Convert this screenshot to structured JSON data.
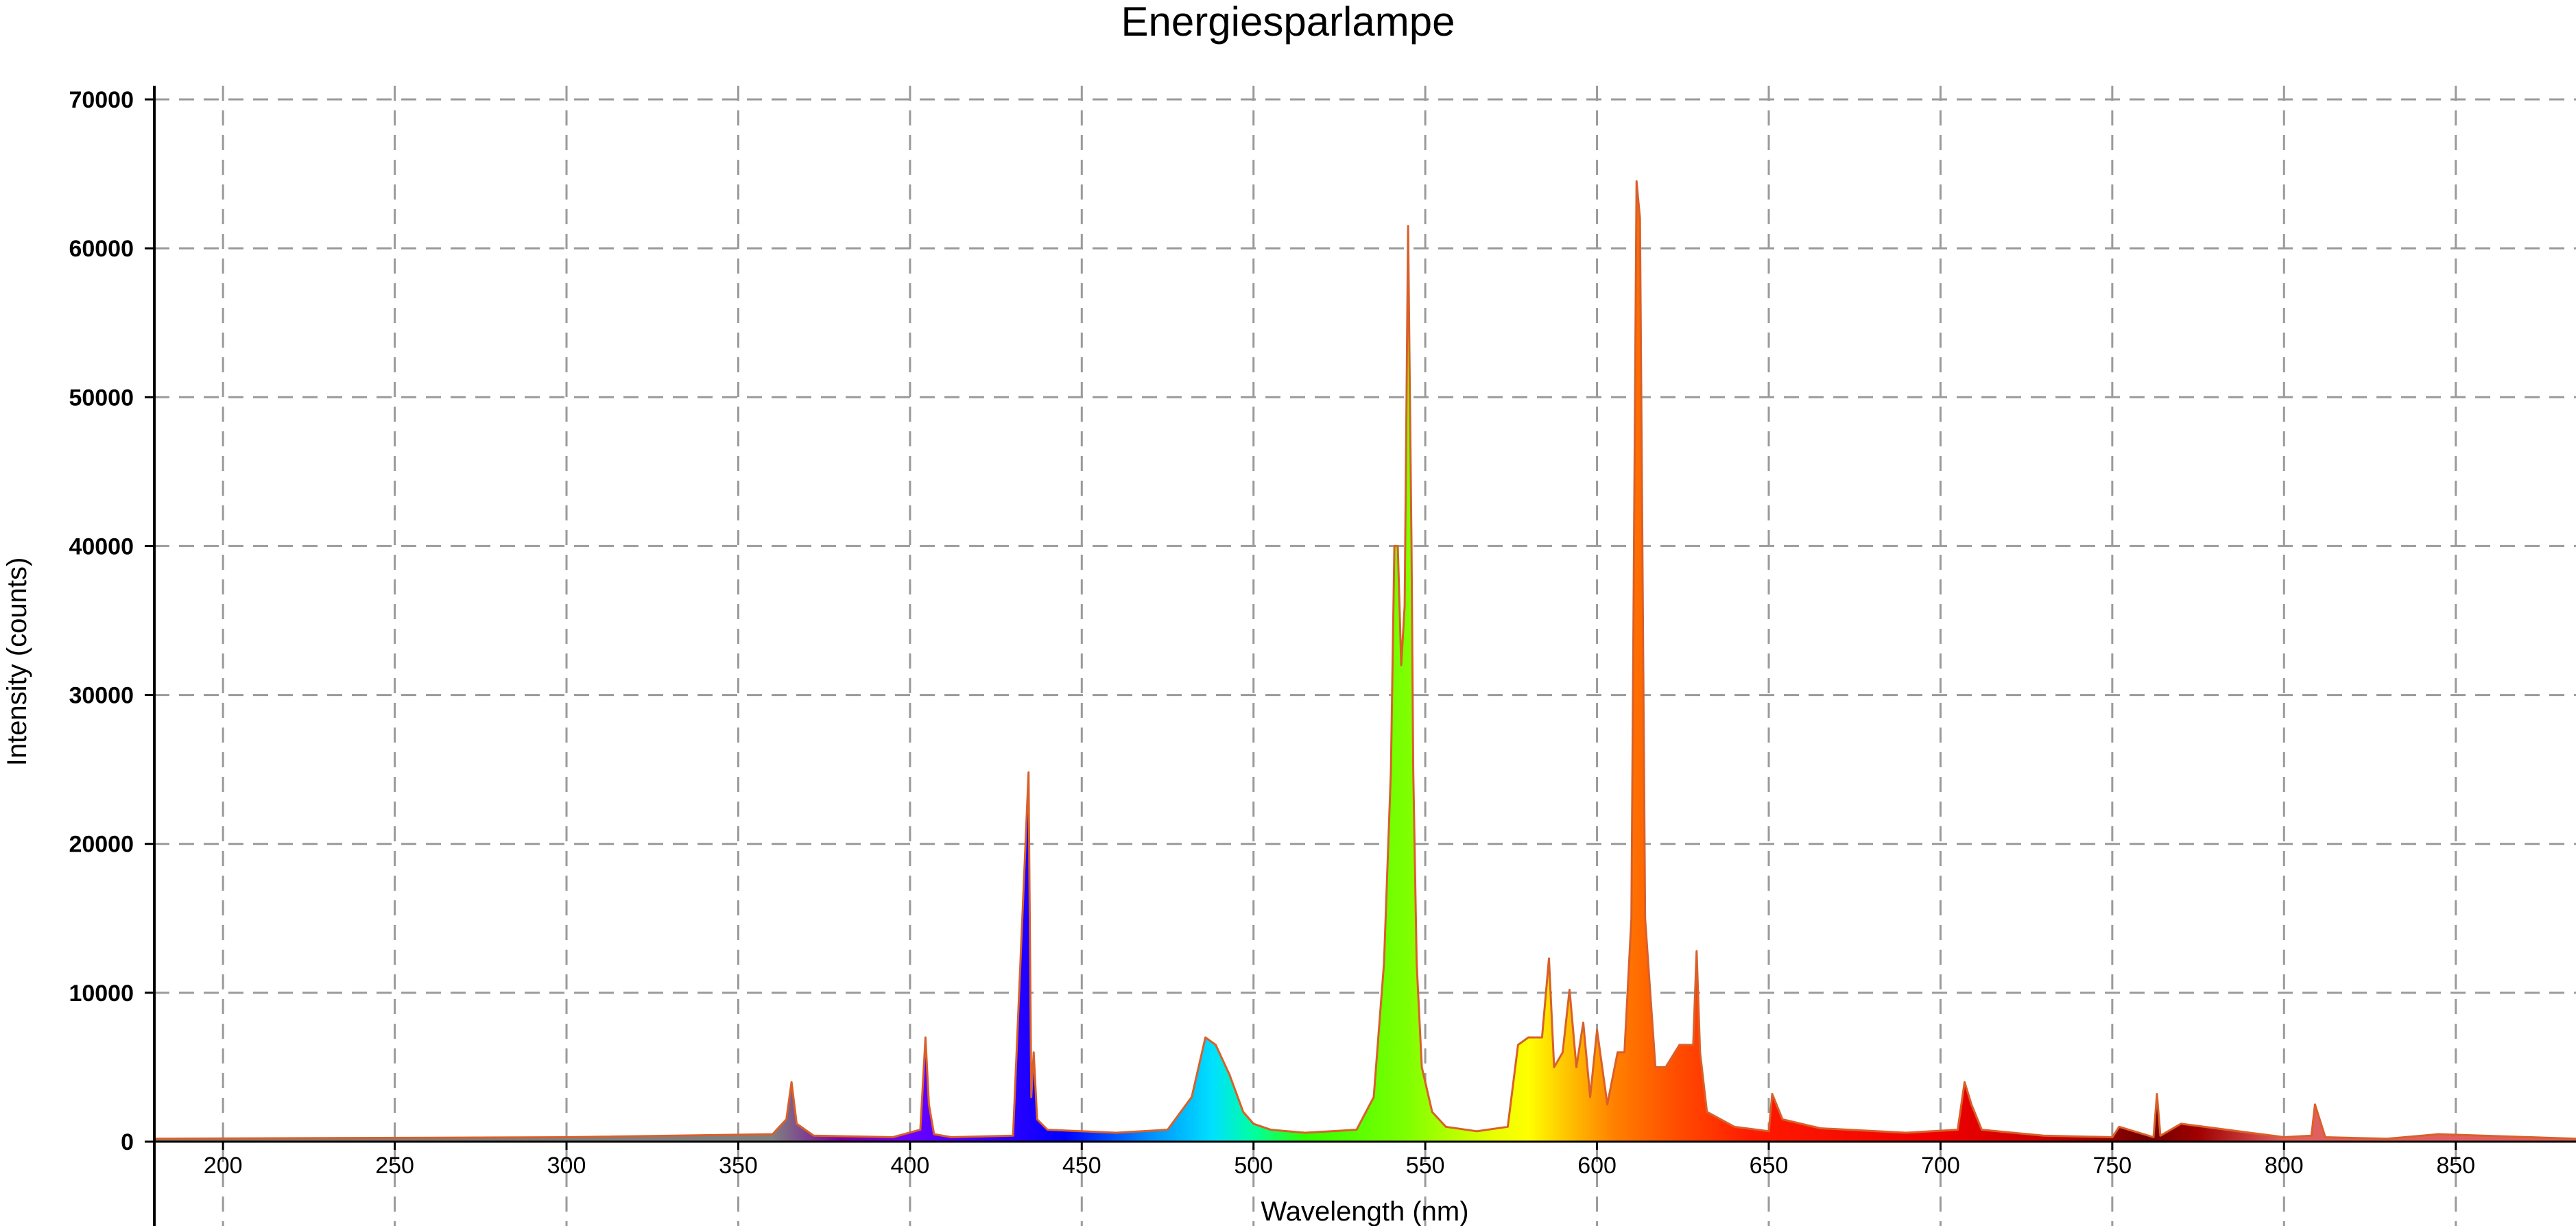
{
  "chart_data": {
    "type": "area",
    "title": "Energiesparlampe",
    "xlabel": "Wavelength (nm)",
    "ylabel": "Intensity (counts)",
    "xlim": [
      180,
      885
    ],
    "ylim": [
      0,
      70000
    ],
    "grid": true,
    "x_ticks": [
      200,
      250,
      300,
      350,
      400,
      450,
      500,
      550,
      600,
      650,
      700,
      750,
      800,
      850
    ],
    "y_ticks": [
      0,
      10000,
      20000,
      30000,
      40000,
      50000,
      60000,
      70000
    ],
    "series": [
      {
        "x": [
          180,
          300,
          360,
          364,
          365.5,
          367,
          372,
          395,
          403,
          404.5,
          405.5,
          407,
          412,
          430,
          434.5,
          435.3,
          436,
          437,
          440,
          460,
          475,
          482,
          486,
          489,
          493,
          497,
          500,
          505,
          515,
          530,
          535,
          538,
          540,
          541,
          542,
          543,
          544,
          545,
          546,
          546.5,
          547.5,
          549,
          552,
          556,
          565,
          574,
          577,
          580,
          584,
          586,
          587.5,
          590,
          592,
          594,
          596,
          598,
          600,
          603,
          606,
          608,
          610,
          611.5,
          612.5,
          614,
          617,
          620,
          624,
          628,
          629,
          630,
          632,
          640,
          650,
          651,
          654,
          665,
          690,
          705,
          707,
          709,
          712,
          730,
          750,
          752,
          762,
          763,
          764,
          770,
          800,
          808,
          809,
          812,
          830,
          845,
          885
        ],
        "values": [
          200,
          300,
          500,
          1500,
          4000,
          1200,
          400,
          300,
          800,
          7000,
          2500,
          500,
          300,
          400,
          24800,
          3000,
          6000,
          1500,
          800,
          600,
          800,
          3000,
          7000,
          6500,
          4500,
          2000,
          1200,
          800,
          600,
          800,
          3000,
          12000,
          25000,
          40000,
          40000,
          32000,
          36000,
          61500,
          40000,
          25000,
          12000,
          5000,
          2000,
          1000,
          700,
          1000,
          6500,
          7000,
          7000,
          12300,
          5000,
          6000,
          10200,
          5000,
          8000,
          3000,
          7500,
          2500,
          6000,
          6000,
          15000,
          64500,
          62000,
          15000,
          5000,
          5000,
          6500,
          6500,
          12800,
          6000,
          2000,
          1000,
          700,
          3200,
          1500,
          900,
          600,
          800,
          4000,
          2500,
          800,
          400,
          300,
          1000,
          300,
          3200,
          400,
          1200,
          300,
          400,
          2500,
          300,
          200,
          500,
          200
        ]
      }
    ]
  }
}
